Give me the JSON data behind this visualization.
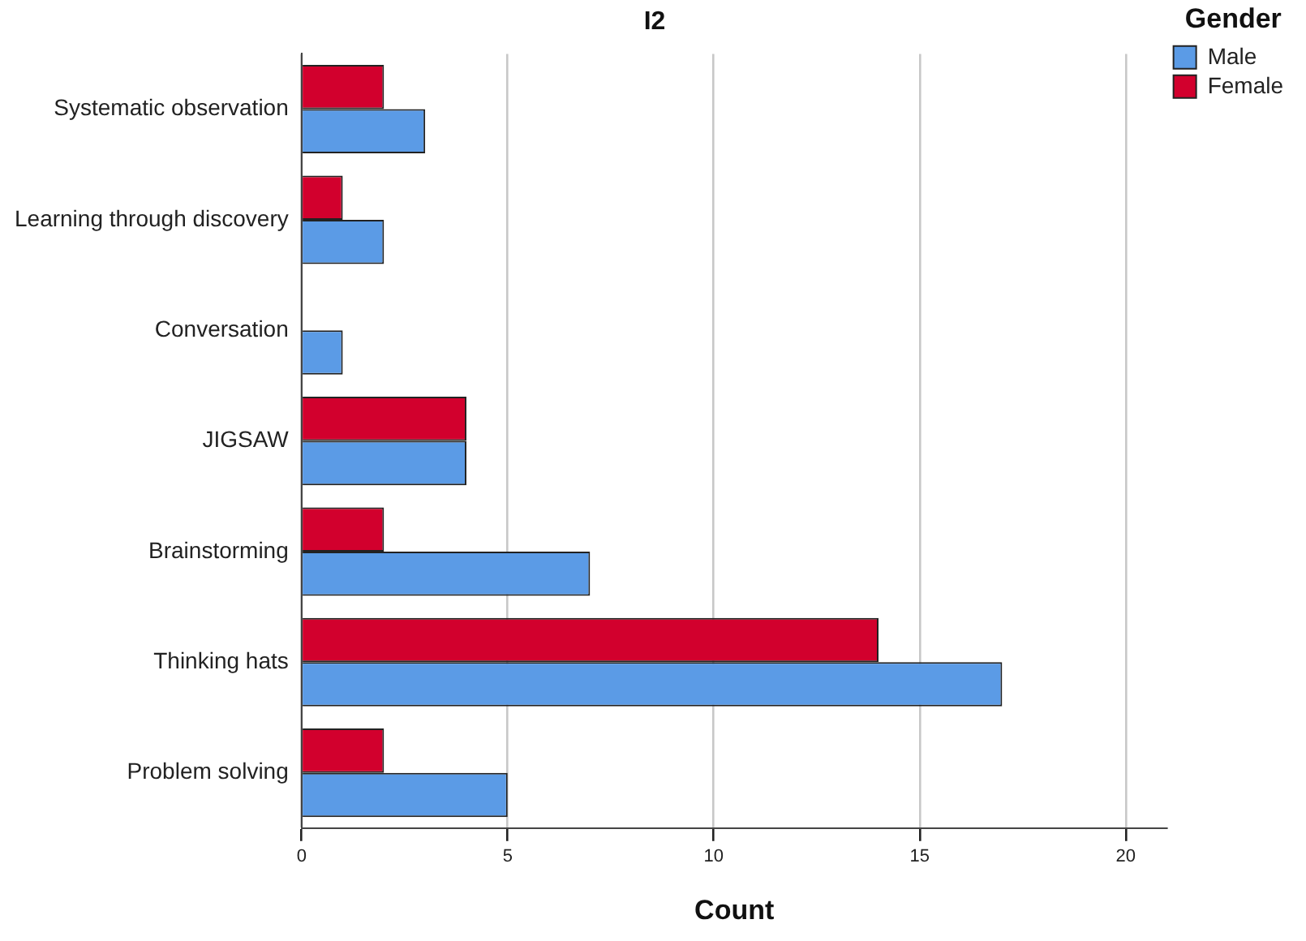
{
  "chart_data": {
    "type": "bar",
    "orientation": "horizontal",
    "title": "I2",
    "xlabel": "Count",
    "legend_title": "Gender",
    "legend": "top right",
    "grid": "x",
    "categories": [
      "Systematic observation",
      "Learning through discovery",
      "Conversation",
      "JIGSAW",
      "Brainstorming",
      "Thinking hats",
      "Problem solving"
    ],
    "series": [
      {
        "name": "Male",
        "color": "#5b9be6",
        "values": [
          3,
          2,
          1,
          4,
          7,
          17,
          5
        ]
      },
      {
        "name": "Female",
        "color": "#d2002d",
        "values": [
          2,
          1,
          null,
          4,
          2,
          14,
          2
        ]
      }
    ],
    "xlim": [
      0,
      21
    ],
    "xticks": [
      0,
      5,
      10,
      15,
      20
    ]
  }
}
